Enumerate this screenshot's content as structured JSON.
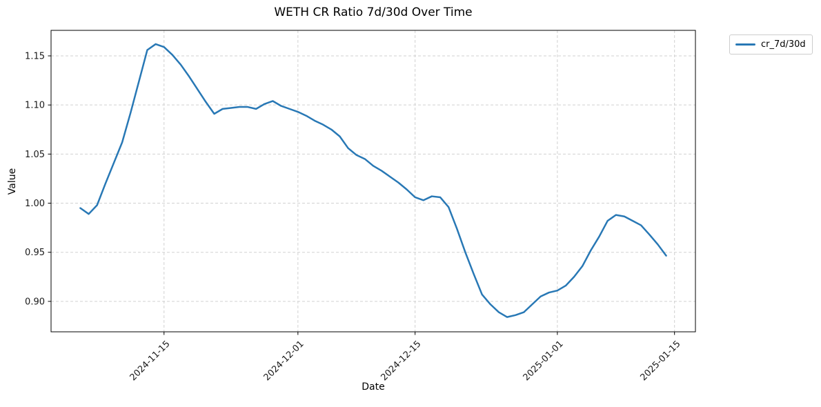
{
  "chart_data": {
    "type": "line",
    "title": "WETH CR Ratio 7d/30d Over Time",
    "xlabel": "Date",
    "ylabel": "Value",
    "grid": true,
    "background": "#ffffff",
    "grid_color": "#d0d0d0",
    "line_color": "#2878b5",
    "line_width": 2.5,
    "legend": {
      "position": "outside-upper-right",
      "entries": [
        {
          "label": "cr_7d/30d",
          "color": "#2878b5"
        }
      ]
    },
    "x_tick_labels": [
      "2024-11-15",
      "2024-12-01",
      "2024-12-15",
      "2025-01-01",
      "2025-01-15"
    ],
    "y_ticks": [
      0.9,
      0.95,
      1.0,
      1.05,
      1.1,
      1.15
    ],
    "y_tick_labels": [
      "0.90",
      "0.95",
      "1.00",
      "1.05",
      "1.10",
      "1.15"
    ],
    "ylim": [
      0.869,
      1.176
    ],
    "xlim_days_from_first_point": [
      -3.5,
      73.5
    ],
    "series": [
      {
        "name": "cr_7d/30d",
        "x": [
          "2024-11-05",
          "2024-11-06",
          "2024-11-07",
          "2024-11-08",
          "2024-11-09",
          "2024-11-10",
          "2024-11-11",
          "2024-11-12",
          "2024-11-13",
          "2024-11-14",
          "2024-11-15",
          "2024-11-16",
          "2024-11-17",
          "2024-11-18",
          "2024-11-19",
          "2024-11-20",
          "2024-11-21",
          "2024-11-22",
          "2024-11-23",
          "2024-11-24",
          "2024-11-25",
          "2024-11-26",
          "2024-11-27",
          "2024-11-28",
          "2024-11-29",
          "2024-11-30",
          "2024-12-01",
          "2024-12-02",
          "2024-12-03",
          "2024-12-04",
          "2024-12-05",
          "2024-12-06",
          "2024-12-07",
          "2024-12-08",
          "2024-12-09",
          "2024-12-10",
          "2024-12-11",
          "2024-12-12",
          "2024-12-13",
          "2024-12-14",
          "2024-12-15",
          "2024-12-16",
          "2024-12-17",
          "2024-12-18",
          "2024-12-19",
          "2024-12-20",
          "2024-12-21",
          "2024-12-22",
          "2024-12-23",
          "2024-12-24",
          "2024-12-25",
          "2024-12-26",
          "2024-12-27",
          "2024-12-28",
          "2024-12-29",
          "2024-12-30",
          "2024-12-31",
          "2025-01-01",
          "2025-01-02",
          "2025-01-03",
          "2025-01-04",
          "2025-01-05",
          "2025-01-06",
          "2025-01-07",
          "2025-01-08",
          "2025-01-09",
          "2025-01-10",
          "2025-01-11",
          "2025-01-12",
          "2025-01-13",
          "2025-01-14"
        ],
        "values": [
          0.995,
          0.989,
          0.998,
          1.02,
          1.041,
          1.062,
          1.092,
          1.124,
          1.156,
          1.162,
          1.159,
          1.151,
          1.141,
          1.129,
          1.116,
          1.103,
          1.091,
          1.096,
          1.097,
          1.098,
          1.098,
          1.096,
          1.101,
          1.104,
          1.099,
          1.096,
          1.093,
          1.089,
          1.084,
          1.08,
          1.075,
          1.068,
          1.056,
          1.049,
          1.045,
          1.038,
          1.033,
          1.027,
          1.021,
          1.014,
          1.006,
          1.003,
          1.007,
          1.006,
          0.996,
          0.974,
          0.95,
          0.928,
          0.907,
          0.897,
          0.889,
          0.884,
          0.886,
          0.889,
          0.897,
          0.905,
          0.909,
          0.911,
          0.916,
          0.925,
          0.936,
          0.952,
          0.966,
          0.982,
          0.988,
          0.9865,
          0.982,
          0.9775,
          0.968,
          0.958,
          0.9465
        ]
      }
    ]
  }
}
